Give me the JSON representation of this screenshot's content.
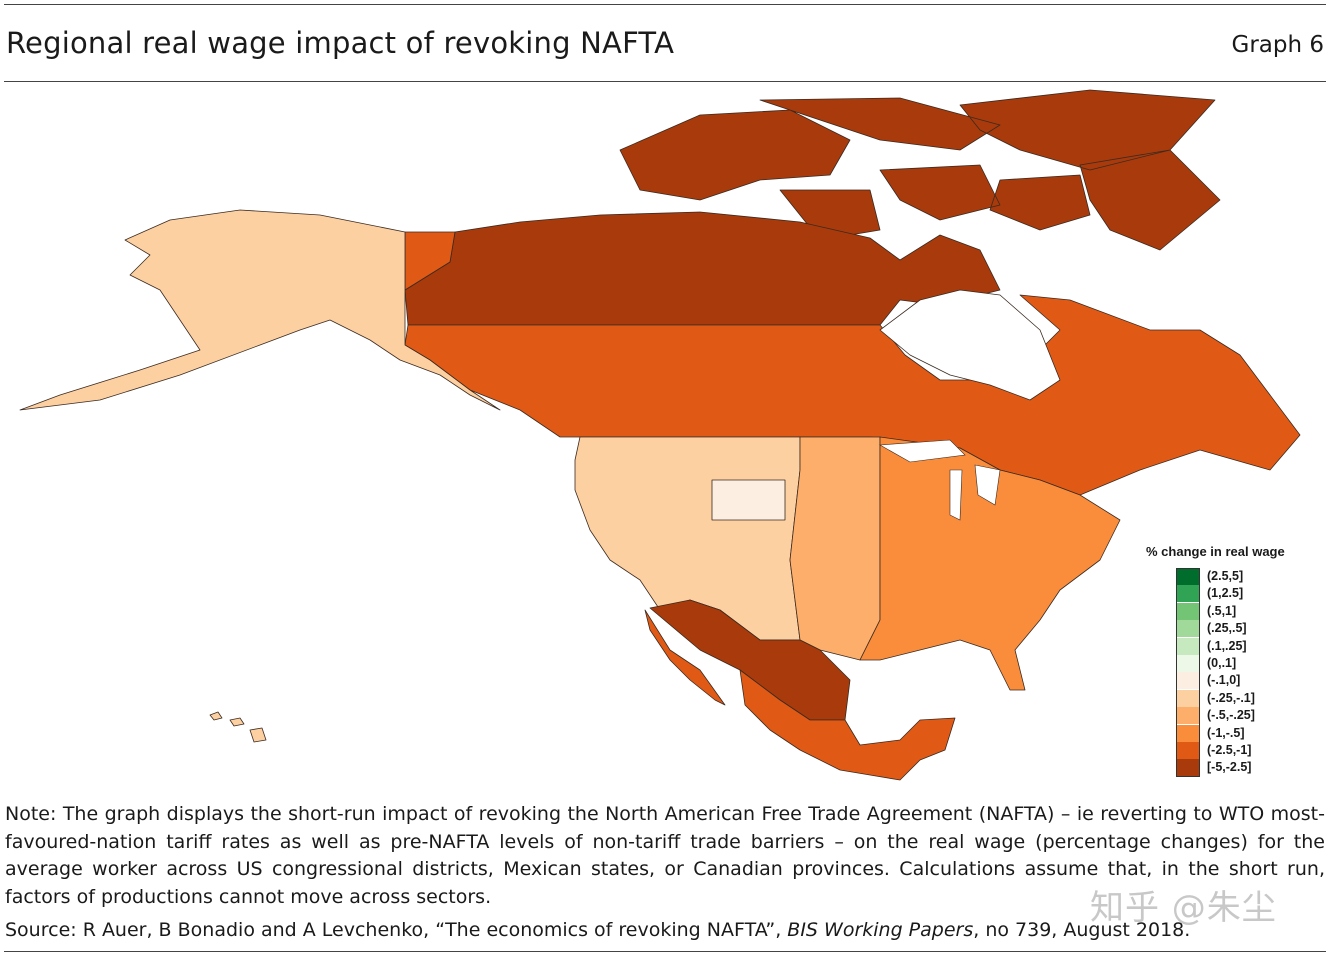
{
  "header": {
    "title": "Regional real wage impact of revoking NAFTA",
    "graph_label": "Graph 6"
  },
  "legend": {
    "title": "% change in real wage",
    "items": [
      {
        "label": "(2.5,5]",
        "color": "#006d2c"
      },
      {
        "label": "(1,2.5]",
        "color": "#31a354"
      },
      {
        "label": "(.5,1]",
        "color": "#74c476"
      },
      {
        "label": "(.25,.5]",
        "color": "#a1d99b"
      },
      {
        "label": "(.1,.25]",
        "color": "#c7e9c0"
      },
      {
        "label": "(0,.1]",
        "color": "#edf8e9"
      },
      {
        "label": "(-.1,0]",
        "color": "#fdeee2"
      },
      {
        "label": "(-.25,-.1]",
        "color": "#fdd0a2"
      },
      {
        "label": "(-.5,-.25]",
        "color": "#fdae6b"
      },
      {
        "label": "(-1,-.5]",
        "color": "#f98d3c"
      },
      {
        "label": "(-2.5,-1]",
        "color": "#e05a16"
      },
      {
        "label": "[-5,-2.5]",
        "color": "#a83a0c"
      }
    ]
  },
  "regions": {
    "canada_north": "#a83a0c",
    "canada_provinces": "#e05a16",
    "alaska": "#fdd0a2",
    "us_west": "#fdd0a2",
    "us_plains": "#fdae6b",
    "us_east": "#f98d3c",
    "mexico_north": "#a83a0c",
    "mexico_south": "#e05a16",
    "wyoming": "#fdeee2"
  },
  "note": "Note: The graph displays the short-run impact of revoking the North American Free Trade Agreement (NAFTA) – ie reverting to WTO most-favoured-nation tariff rates as well as pre-NAFTA levels of non-tariff trade barriers – on the real wage (percentage changes) for the average worker across US congressional districts, Mexican states, or Canadian provinces. Calculations assume that, in the short run, factors of productions cannot move across sectors.",
  "source": {
    "prefix": "Source: R Auer, B Bonadio and A Levchenko, “The economics of revoking NAFTA”, ",
    "italic": "BIS Working Papers",
    "suffix": ", no 739, August 2018."
  },
  "watermark": "知乎 @朱尘"
}
